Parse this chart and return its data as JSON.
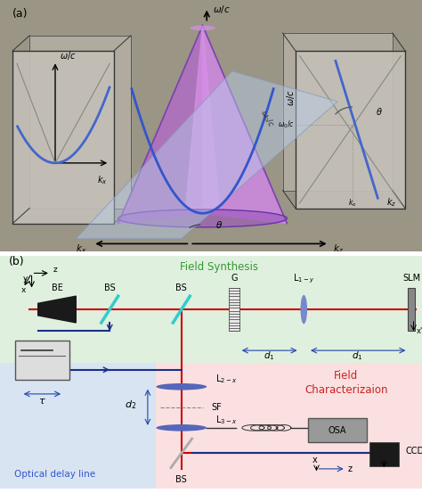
{
  "fig_width": 4.74,
  "fig_height": 5.53,
  "dpi": 100,
  "panel_a_bg": "#9a9585",
  "panel_b_bg": "#ffffff",
  "green_bg": "#dff0df",
  "blue_bg": "#d8e4f0",
  "pink_bg": "#fae0e0",
  "red_line_color": "#cc0000",
  "dark_blue": "#1a2f7a",
  "cyan_color": "#44ccdd",
  "purple_lens": "#6670bb",
  "label_a": "(a)",
  "label_b": "(b)",
  "title_synthesis": "Field Synthesis",
  "title_characterization": "Field\nCharacterizaion",
  "title_delay": "Optical delay line",
  "cone_color": "#c085c8",
  "cone_dark": "#a060a8",
  "cone_light": "#d8a0e0",
  "plane_color": "#a8c0e8",
  "inset_bg": "#c8c4bc",
  "inset_border": "#555555",
  "kx_label": "k_x",
  "kz_label": "k_z",
  "omega_label": "\\omega/c"
}
